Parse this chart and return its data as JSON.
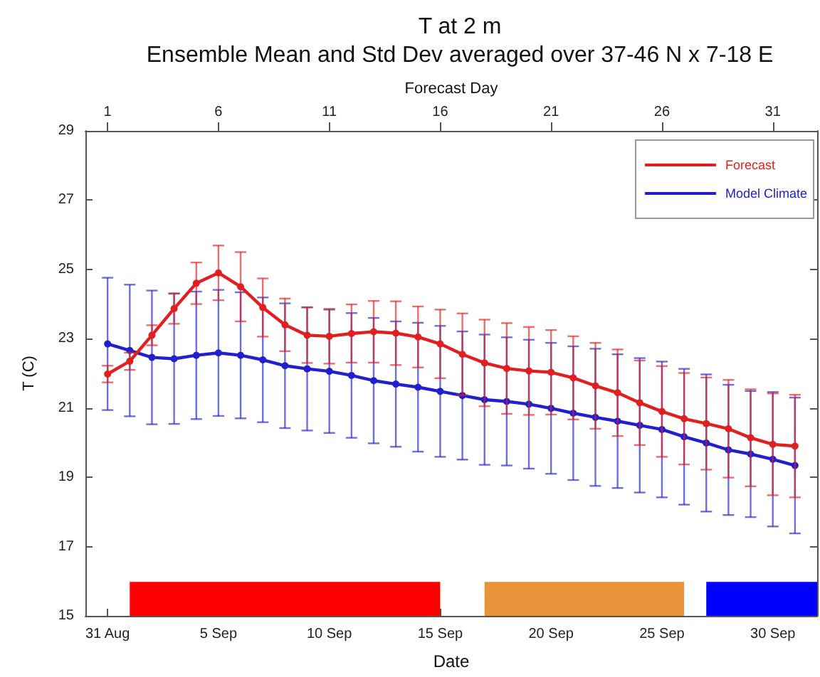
{
  "chart_data": {
    "type": "line",
    "title": "T at 2 m",
    "subtitle": "Ensemble Mean and Std Dev averaged over 37-46 N x 7-18 E",
    "xlabel": "Date",
    "ylabel": "T (C)",
    "x2label": "Forecast Day",
    "x": [
      "--08-31",
      "--09-01",
      "--09-02",
      "--09-03",
      "--09-04",
      "--09-05",
      "--09-06",
      "--09-07",
      "--09-08",
      "--09-09",
      "--09-10",
      "--09-11",
      "--09-12",
      "--09-13",
      "--09-14",
      "--09-15",
      "--09-16",
      "--09-17",
      "--09-18",
      "--09-19",
      "--09-20",
      "--09-21",
      "--09-22",
      "--09-23",
      "--09-24",
      "--09-25",
      "--09-26",
      "--09-27",
      "--09-28",
      "--09-29",
      "--09-30",
      "--10-01"
    ],
    "series": [
      {
        "name": "Forecast",
        "color": "#e02020",
        "values": [
          21.98,
          22.35,
          23.1,
          23.87,
          24.6,
          24.9,
          24.5,
          23.9,
          23.4,
          23.1,
          23.07,
          23.15,
          23.2,
          23.16,
          23.05,
          22.85,
          22.55,
          22.3,
          22.14,
          22.07,
          22.03,
          21.87,
          21.64,
          21.44,
          21.15,
          20.9,
          20.69,
          20.55,
          20.4,
          20.14,
          19.95,
          19.9
        ],
        "errors": [
          0.24,
          0.25,
          0.29,
          0.44,
          0.6,
          0.79,
          1.0,
          0.84,
          0.76,
          0.8,
          0.79,
          0.84,
          0.89,
          0.92,
          0.88,
          0.99,
          1.18,
          1.25,
          1.31,
          1.27,
          1.22,
          1.2,
          1.24,
          1.25,
          1.22,
          1.31,
          1.32,
          1.33,
          1.41,
          1.4,
          1.47,
          1.48
        ]
      },
      {
        "name": "Model Climate",
        "color": "#2020d0",
        "values": [
          22.85,
          22.66,
          22.46,
          22.42,
          22.52,
          22.59,
          22.52,
          22.39,
          22.22,
          22.13,
          22.06,
          21.94,
          21.79,
          21.69,
          21.6,
          21.48,
          21.36,
          21.24,
          21.19,
          21.11,
          20.99,
          20.85,
          20.73,
          20.62,
          20.5,
          20.38,
          20.17,
          19.99,
          19.79,
          19.67,
          19.52,
          19.34
        ],
        "errors": [
          1.91,
          1.9,
          1.93,
          1.88,
          1.84,
          1.82,
          1.82,
          1.8,
          1.8,
          1.78,
          1.78,
          1.8,
          1.81,
          1.81,
          1.86,
          1.89,
          1.85,
          1.88,
          1.85,
          1.86,
          1.89,
          1.93,
          1.98,
          1.93,
          1.94,
          1.96,
          1.96,
          1.98,
          1.88,
          1.82,
          1.94,
          1.96
        ]
      }
    ],
    "xlim": [
      "--08-30",
      "--10-02"
    ],
    "xticks": [
      {
        "value": "--08-31",
        "label": "31 Aug"
      },
      {
        "value": "--09-05",
        "label": "5 Sep"
      },
      {
        "value": "--09-10",
        "label": "10 Sep"
      },
      {
        "value": "--09-15",
        "label": "15 Sep"
      },
      {
        "value": "--09-20",
        "label": "20 Sep"
      },
      {
        "value": "--09-25",
        "label": "25 Sep"
      },
      {
        "value": "--09-30",
        "label": "30 Sep"
      }
    ],
    "x2lim": [
      0,
      33
    ],
    "x2ticks": [
      1,
      6,
      11,
      16,
      21,
      26,
      31
    ],
    "ylim": [
      15,
      29
    ],
    "yticks": [
      15,
      17,
      19,
      21,
      23,
      25,
      27,
      29
    ],
    "bands": [
      {
        "axis": "x",
        "from": "--09-01",
        "to": "--09-15",
        "color": "#ff0000"
      },
      {
        "axis": "x",
        "from": "--09-17",
        "to": "--09-26",
        "color": "#e8923a"
      },
      {
        "axis": "x",
        "from": "--09-27",
        "to": "--10-02",
        "color": "#0000ff"
      }
    ],
    "grid": false,
    "legend": "top right",
    "marker": "circle",
    "line_style": "solid"
  }
}
